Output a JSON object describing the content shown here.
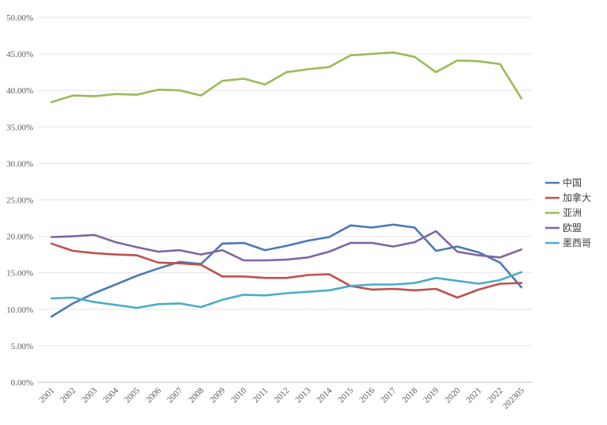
{
  "chart_data": {
    "type": "line",
    "title": "",
    "xlabel": "",
    "ylabel": "",
    "ylim": [
      0,
      50
    ],
    "yticks": [
      "0.00%",
      "5.00%",
      "10.00%",
      "15.00%",
      "20.00%",
      "25.00%",
      "30.00%",
      "35.00%",
      "40.00%",
      "45.00%",
      "50.00%"
    ],
    "grid": "horizontal",
    "legend_position": "right",
    "categories": [
      "2001",
      "2002",
      "2003",
      "2004",
      "2005",
      "2006",
      "2007",
      "2008",
      "2009",
      "2010",
      "2011",
      "2012",
      "2013",
      "2014",
      "2015",
      "2016",
      "2017",
      "2018",
      "2019",
      "2020",
      "2021",
      "2022",
      "202305"
    ],
    "series": [
      {
        "name": "中国",
        "color": "#4a7ab6",
        "values": [
          9.0,
          10.8,
          12.2,
          13.4,
          14.6,
          15.6,
          16.5,
          16.2,
          19.0,
          19.1,
          18.1,
          18.7,
          19.4,
          19.9,
          21.5,
          21.2,
          21.6,
          21.2,
          18.0,
          18.6,
          17.8,
          16.4,
          13.0
        ]
      },
      {
        "name": "加拿大",
        "color": "#c0504d",
        "values": [
          19.0,
          18.0,
          17.7,
          17.5,
          17.4,
          16.4,
          16.3,
          16.1,
          14.5,
          14.5,
          14.3,
          14.3,
          14.7,
          14.8,
          13.2,
          12.7,
          12.8,
          12.6,
          12.8,
          11.6,
          12.7,
          13.5,
          13.6
        ]
      },
      {
        "name": "亚洲",
        "color": "#9bbb59",
        "values": [
          38.4,
          39.3,
          39.2,
          39.5,
          39.4,
          40.1,
          40.0,
          39.3,
          41.3,
          41.6,
          40.8,
          42.5,
          42.9,
          43.2,
          44.8,
          45.0,
          45.2,
          44.6,
          42.5,
          44.1,
          44.0,
          43.6,
          38.9
        ]
      },
      {
        "name": "欧盟",
        "color": "#8064a2",
        "values": [
          19.9,
          20.0,
          20.2,
          19.2,
          18.5,
          17.9,
          18.1,
          17.5,
          18.1,
          16.7,
          16.7,
          16.8,
          17.1,
          17.9,
          19.1,
          19.1,
          18.6,
          19.2,
          20.7,
          17.9,
          17.4,
          17.1,
          18.2
        ]
      },
      {
        "name": "墨西哥",
        "color": "#4bacc6",
        "values": [
          11.5,
          11.6,
          11.0,
          10.6,
          10.2,
          10.7,
          10.8,
          10.3,
          11.3,
          12.0,
          11.9,
          12.2,
          12.4,
          12.6,
          13.2,
          13.4,
          13.4,
          13.6,
          14.3,
          13.9,
          13.5,
          14.0,
          15.1
        ]
      }
    ]
  }
}
